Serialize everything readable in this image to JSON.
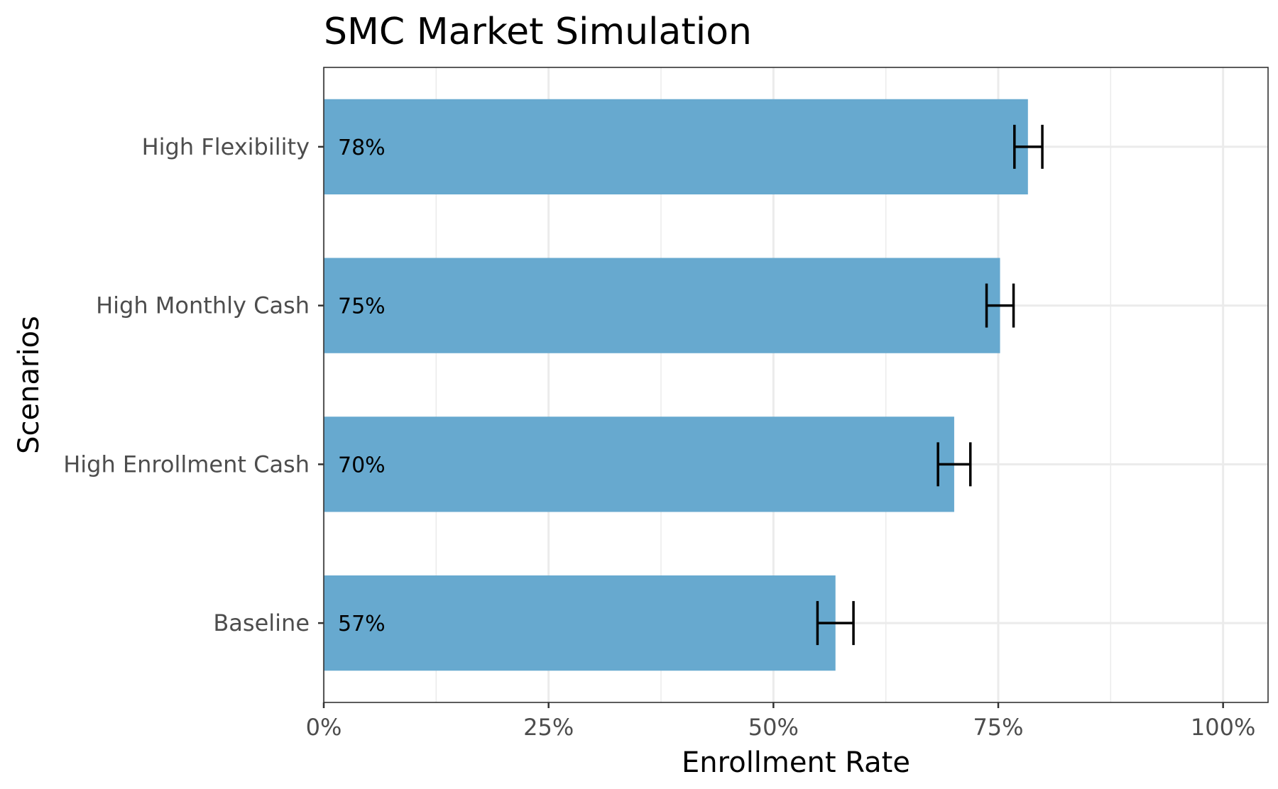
{
  "chart_data": {
    "type": "bar",
    "orientation": "horizontal",
    "title": "SMC Market Simulation",
    "xlabel": "Enrollment Rate",
    "ylabel": "Scenarios",
    "xlim": [
      0,
      1.05
    ],
    "x_ticks": [
      0,
      0.25,
      0.5,
      0.75,
      1.0
    ],
    "x_tick_labels": [
      "0%",
      "25%",
      "50%",
      "75%",
      "100%"
    ],
    "categories": [
      "High Flexibility",
      "High Monthly Cash",
      "High Enrollment Cash",
      "Baseline"
    ],
    "values": [
      0.783,
      0.752,
      0.701,
      0.569
    ],
    "value_labels": [
      "78%",
      "75%",
      "70%",
      "57%"
    ],
    "error_bars": [
      {
        "low": 0.768,
        "high": 0.799
      },
      {
        "low": 0.737,
        "high": 0.767
      },
      {
        "low": 0.683,
        "high": 0.719
      },
      {
        "low": 0.549,
        "high": 0.589
      }
    ],
    "bar_color": "#67a9cf",
    "grid": true,
    "legend": "none"
  }
}
